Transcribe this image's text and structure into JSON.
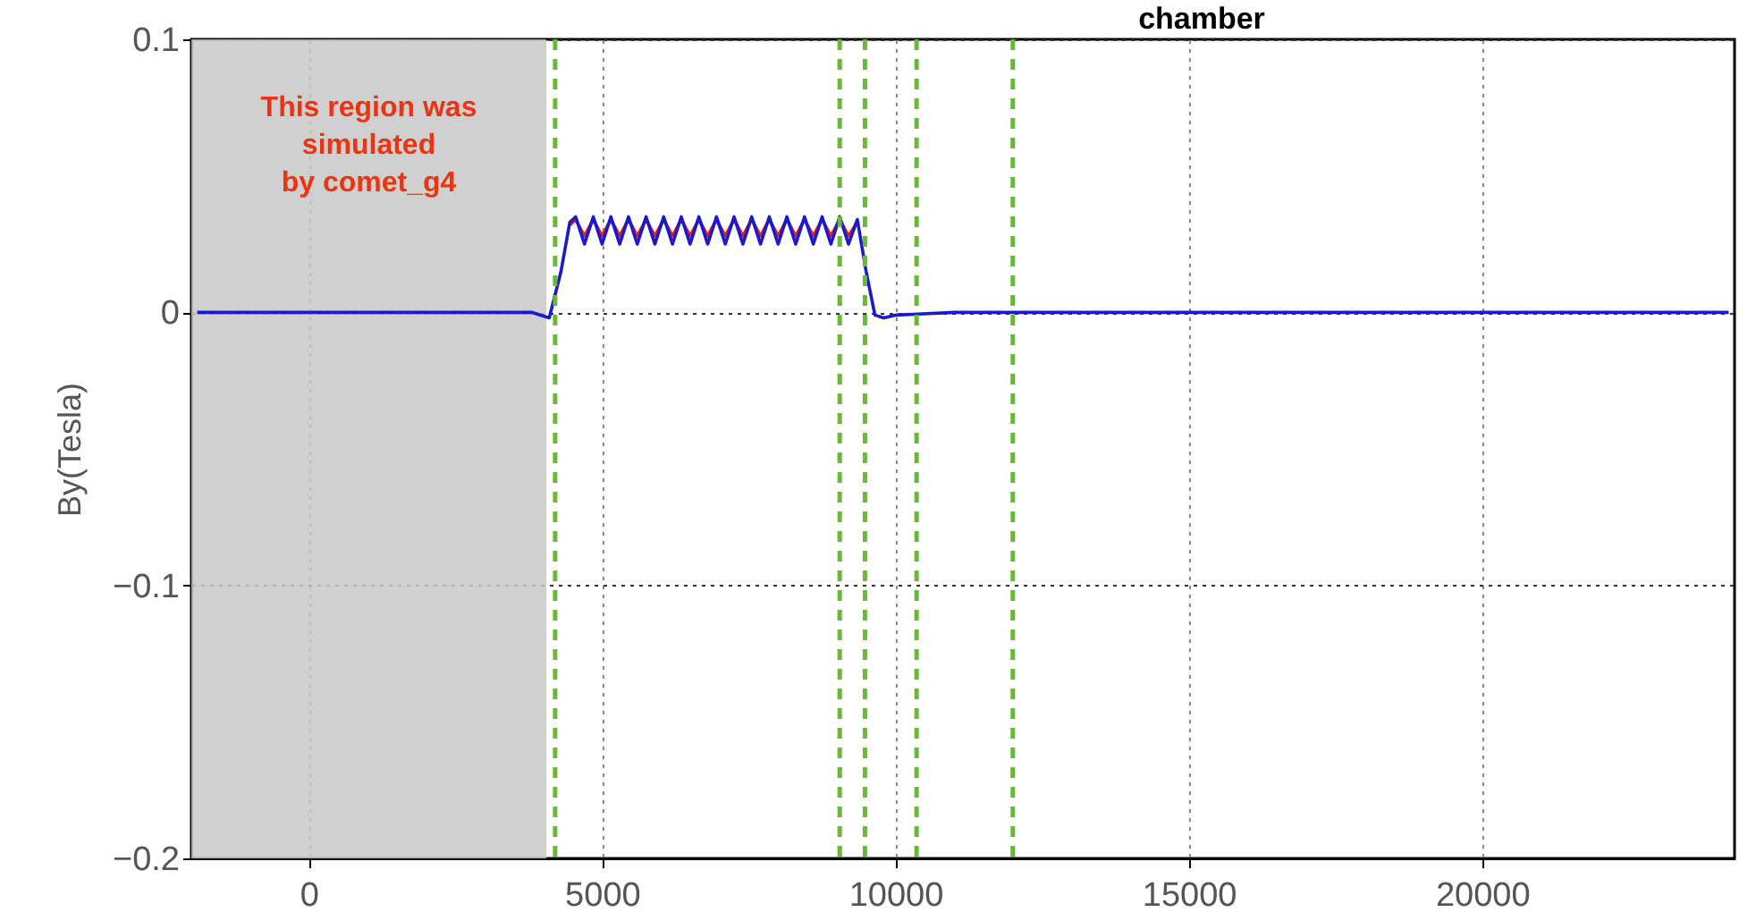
{
  "chart_data": {
    "type": "line",
    "ylabel": "By(Tesla)",
    "xlim": [
      -2000,
      24300
    ],
    "ylim": [
      -0.2,
      0.1
    ],
    "xticks": [
      0,
      5000,
      10000,
      15000,
      20000
    ],
    "yticks": [
      -0.2,
      -0.1,
      0,
      0.1
    ],
    "grid": true,
    "marker": "none",
    "line_style": "solid",
    "annotations": [
      "chamber"
    ],
    "bands": [
      {
        "axis": "x",
        "from": -2000,
        "to": 4050,
        "label": "This region was\nsimulated\nby comet_g4",
        "color": "#c8c8c8"
      }
    ],
    "ref_lines": [
      {
        "axis": "x",
        "value": 4200,
        "color": "#66bb33",
        "line_style": "dashed"
      },
      {
        "axis": "x",
        "value": 9050,
        "color": "#66bb33",
        "line_style": "dashed"
      },
      {
        "axis": "x",
        "value": 9480,
        "color": "#66bb33",
        "line_style": "dashed"
      },
      {
        "axis": "x",
        "value": 10360,
        "color": "#66bb33",
        "line_style": "dashed"
      },
      {
        "axis": "x",
        "value": 12000,
        "color": "#66bb33",
        "line_style": "dashed"
      }
    ],
    "series": [
      {
        "color": "#dd2222",
        "x": [
          4450,
          4550,
          4700,
          4850,
          5000,
          5150,
          5300,
          5450,
          5600,
          5750,
          5900,
          6050,
          6200,
          6350,
          6500,
          6650,
          6800,
          6950,
          7100,
          7250,
          7400,
          7550,
          7700,
          7850,
          8000,
          8150,
          8300,
          8450,
          8600,
          8750,
          8900,
          9050,
          9200,
          9350
        ],
        "values": [
          0.032,
          0.034,
          0.028,
          0.034,
          0.028,
          0.034,
          0.028,
          0.034,
          0.028,
          0.034,
          0.028,
          0.034,
          0.028,
          0.034,
          0.028,
          0.034,
          0.028,
          0.034,
          0.028,
          0.034,
          0.028,
          0.034,
          0.028,
          0.034,
          0.028,
          0.034,
          0.028,
          0.034,
          0.028,
          0.034,
          0.028,
          0.034,
          0.028,
          0.033
        ]
      },
      {
        "color": "#1a1acc",
        "x": [
          -1900,
          3800,
          4100,
          4300,
          4450,
          4550,
          4700,
          4850,
          5000,
          5150,
          5300,
          5450,
          5600,
          5750,
          5900,
          6050,
          6200,
          6350,
          6500,
          6650,
          6800,
          6950,
          7100,
          7250,
          7400,
          7550,
          7700,
          7850,
          8000,
          8150,
          8300,
          8450,
          8600,
          8750,
          8900,
          9050,
          9200,
          9350,
          9500,
          9650,
          9800,
          10000,
          11000,
          24200
        ],
        "values": [
          0,
          0,
          -0.002,
          0.015,
          0.033,
          0.035,
          0.025,
          0.035,
          0.025,
          0.035,
          0.025,
          0.035,
          0.025,
          0.035,
          0.025,
          0.035,
          0.025,
          0.035,
          0.025,
          0.035,
          0.025,
          0.035,
          0.025,
          0.035,
          0.025,
          0.035,
          0.025,
          0.035,
          0.025,
          0.035,
          0.025,
          0.035,
          0.025,
          0.035,
          0.025,
          0.035,
          0.025,
          0.034,
          0.015,
          -0.001,
          -0.002,
          -0.001,
          0,
          0
        ]
      }
    ]
  }
}
